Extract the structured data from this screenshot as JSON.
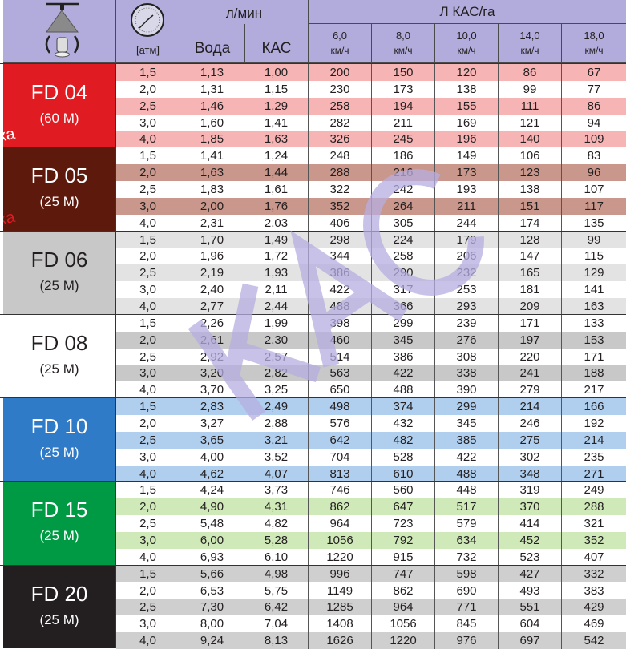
{
  "header": {
    "nozzle_icon": "nozzle-with-filter-icon",
    "gauge_icon": "pressure-gauge-icon",
    "pressure_unit": "[атм]",
    "flow_title": "л/мин",
    "water": "Вода",
    "kas": "КАС",
    "rate_title": "Л КАС/га",
    "speeds": [
      {
        "v": "6,0",
        "u": "км/ч"
      },
      {
        "v": "8,0",
        "u": "км/ч"
      },
      {
        "v": "10,0",
        "u": "км/ч"
      },
      {
        "v": "14,0",
        "u": "км/ч"
      },
      {
        "v": "18,0",
        "u": "км/ч"
      }
    ]
  },
  "watermark": "КАС",
  "side_note": "нка",
  "groups": [
    {
      "name": "FD 04",
      "sub": "(60 M)",
      "color": "#e01b22",
      "stripe": "#f7b4b4",
      "odd": true,
      "rows": [
        [
          "1,5",
          "1,13",
          "1,00",
          "200",
          "150",
          "120",
          "86",
          "67"
        ],
        [
          "2,0",
          "1,31",
          "1,15",
          "230",
          "173",
          "138",
          "99",
          "77"
        ],
        [
          "2,5",
          "1,46",
          "1,29",
          "258",
          "194",
          "155",
          "111",
          "86"
        ],
        [
          "3,0",
          "1,60",
          "1,41",
          "282",
          "211",
          "169",
          "121",
          "94"
        ],
        [
          "4,0",
          "1,85",
          "1,63",
          "326",
          "245",
          "196",
          "140",
          "109"
        ]
      ]
    },
    {
      "name": "FD 05",
      "sub": "(25 M)",
      "color": "#5c190c",
      "stripe": "#c9978b",
      "odd": false,
      "rows": [
        [
          "1,5",
          "1,41",
          "1,24",
          "248",
          "186",
          "149",
          "106",
          "83"
        ],
        [
          "2,0",
          "1,63",
          "1,44",
          "288",
          "216",
          "173",
          "123",
          "96"
        ],
        [
          "2,5",
          "1,83",
          "1,61",
          "322",
          "242",
          "193",
          "138",
          "107"
        ],
        [
          "3,0",
          "2,00",
          "1,76",
          "352",
          "264",
          "211",
          "151",
          "117"
        ],
        [
          "4,0",
          "2,31",
          "2,03",
          "406",
          "305",
          "244",
          "174",
          "135"
        ]
      ]
    },
    {
      "name": "FD 06",
      "sub": "(25 M)",
      "color": "#c8c8c8",
      "stripe": "#e3e3e3",
      "odd": true,
      "dark": true,
      "rows": [
        [
          "1,5",
          "1,70",
          "1,49",
          "298",
          "224",
          "179",
          "128",
          "99"
        ],
        [
          "2,0",
          "1,96",
          "1,72",
          "344",
          "258",
          "206",
          "147",
          "115"
        ],
        [
          "2,5",
          "2,19",
          "1,93",
          "386",
          "290",
          "232",
          "165",
          "129"
        ],
        [
          "3,0",
          "2,40",
          "2,11",
          "422",
          "317",
          "253",
          "181",
          "141"
        ],
        [
          "4,0",
          "2,77",
          "2,44",
          "488",
          "366",
          "293",
          "209",
          "163"
        ]
      ]
    },
    {
      "name": "FD 08",
      "sub": "(25 M)",
      "color": "#ffffff",
      "stripe": "#c8c8c8",
      "odd": false,
      "dark": true,
      "rows": [
        [
          "1,5",
          "2,26",
          "1,99",
          "398",
          "299",
          "239",
          "171",
          "133"
        ],
        [
          "2,0",
          "2,61",
          "2,30",
          "460",
          "345",
          "276",
          "197",
          "153"
        ],
        [
          "2,5",
          "2,92",
          "2,57",
          "514",
          "386",
          "308",
          "220",
          "171"
        ],
        [
          "3,0",
          "3,20",
          "2,82",
          "563",
          "422",
          "338",
          "241",
          "188"
        ],
        [
          "4,0",
          "3,70",
          "3,25",
          "650",
          "488",
          "390",
          "279",
          "217"
        ]
      ]
    },
    {
      "name": "FD 10",
      "sub": "(25 M)",
      "color": "#2f7bc8",
      "stripe": "#b0cfee",
      "odd": true,
      "rows": [
        [
          "1,5",
          "2,83",
          "2,49",
          "498",
          "374",
          "299",
          "214",
          "166"
        ],
        [
          "2,0",
          "3,27",
          "2,88",
          "576",
          "432",
          "345",
          "246",
          "192"
        ],
        [
          "2,5",
          "3,65",
          "3,21",
          "642",
          "482",
          "385",
          "275",
          "214"
        ],
        [
          "3,0",
          "4,00",
          "3,52",
          "704",
          "528",
          "422",
          "302",
          "235"
        ],
        [
          "4,0",
          "4,62",
          "4,07",
          "813",
          "610",
          "488",
          "348",
          "271"
        ]
      ]
    },
    {
      "name": "FD 15",
      "sub": "(25 M)",
      "color": "#009a44",
      "stripe": "#cfe9b9",
      "odd": false,
      "rows": [
        [
          "1,5",
          "4,24",
          "3,73",
          "746",
          "560",
          "448",
          "319",
          "249"
        ],
        [
          "2,0",
          "4,90",
          "4,31",
          "862",
          "647",
          "517",
          "370",
          "288"
        ],
        [
          "2,5",
          "5,48",
          "4,82",
          "964",
          "723",
          "579",
          "414",
          "321"
        ],
        [
          "3,0",
          "6,00",
          "5,28",
          "1056",
          "792",
          "634",
          "452",
          "352"
        ],
        [
          "4,0",
          "6,93",
          "6,10",
          "1220",
          "915",
          "732",
          "523",
          "407"
        ]
      ]
    },
    {
      "name": "FD 20",
      "sub": "(25 M)",
      "color": "#231f20",
      "stripe": "#cfcfcf",
      "odd": true,
      "rows": [
        [
          "1,5",
          "5,66",
          "4,98",
          "996",
          "747",
          "598",
          "427",
          "332"
        ],
        [
          "2,0",
          "6,53",
          "5,75",
          "1149",
          "862",
          "690",
          "493",
          "383"
        ],
        [
          "2,5",
          "7,30",
          "6,42",
          "1285",
          "964",
          "771",
          "551",
          "429"
        ],
        [
          "3,0",
          "8,00",
          "7,04",
          "1408",
          "1056",
          "845",
          "604",
          "469"
        ],
        [
          "4,0",
          "9,24",
          "8,13",
          "1626",
          "1220",
          "976",
          "697",
          "542"
        ]
      ]
    }
  ]
}
